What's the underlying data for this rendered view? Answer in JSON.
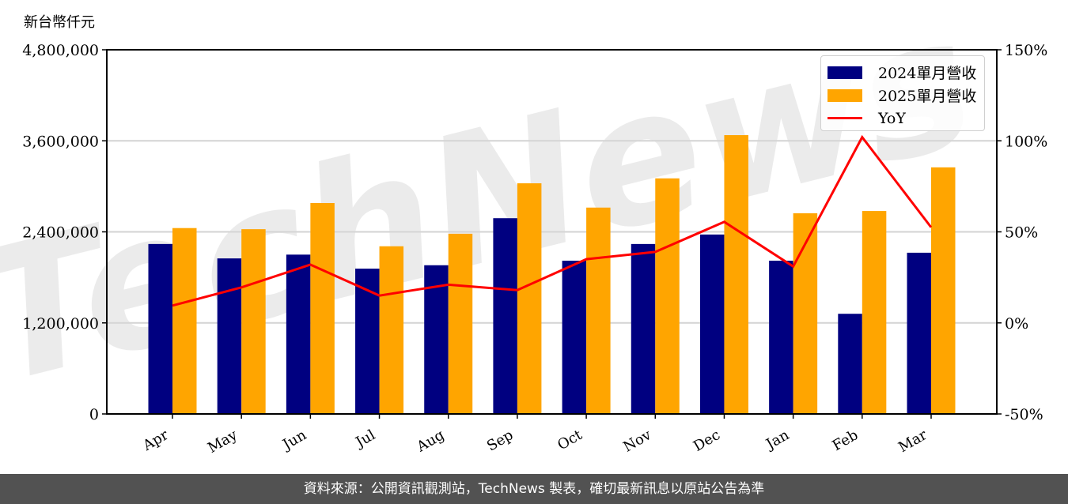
{
  "unit_label": "新台幣仟元",
  "footer": "資料來源：公開資訊觀測站，TechNews 製表，確切最新訊息以原站公告為準",
  "watermark": "TechNews",
  "colors": {
    "bar_2024": "#000080",
    "bar_2025": "#FFA500",
    "yoy_line": "#FF0000",
    "grid": "#d3d3d3",
    "footer_bg": "#525252"
  },
  "legend": {
    "items": [
      {
        "label": "2024單月營收",
        "type": "bar",
        "color": "#000080"
      },
      {
        "label": "2025單月營收",
        "type": "bar",
        "color": "#FFA500"
      },
      {
        "label": "YoY",
        "type": "line",
        "color": "#FF0000"
      }
    ]
  },
  "chart_data": {
    "type": "bar",
    "title": "",
    "xlabel": "",
    "ylabel": "新台幣仟元",
    "y2label": "",
    "categories": [
      "Apr",
      "May",
      "Jun",
      "Jul",
      "Aug",
      "Sep",
      "Oct",
      "Nov",
      "Dec",
      "Jan",
      "Feb",
      "Mar"
    ],
    "series": [
      {
        "name": "2024單月營收",
        "type": "bar",
        "axis": "left",
        "values": [
          2240000,
          2050000,
          2100000,
          1915000,
          1960000,
          2580000,
          2020000,
          2240000,
          2365000,
          2020000,
          1320000,
          2125000
        ]
      },
      {
        "name": "2025單月營收",
        "type": "bar",
        "axis": "left",
        "values": [
          2450000,
          2435000,
          2780000,
          2210000,
          2375000,
          3040000,
          2720000,
          3105000,
          3675000,
          2645000,
          2675000,
          3250000
        ]
      },
      {
        "name": "YoY",
        "type": "line",
        "axis": "right",
        "unit": "%",
        "values": [
          9.5,
          19.5,
          32,
          15,
          21,
          18,
          35,
          39,
          55.5,
          31,
          102,
          52.5
        ]
      }
    ],
    "ylim": [
      0,
      4800000
    ],
    "yticks": [
      0,
      1200000,
      2400000,
      3600000,
      4800000
    ],
    "ytick_labels": [
      "0",
      "1,200,000",
      "2,400,000",
      "3,600,000",
      "4,800,000"
    ],
    "y2lim": [
      -50,
      150
    ],
    "y2ticks": [
      -50,
      0,
      50,
      100,
      150
    ],
    "y2tick_labels": [
      "-50%",
      "0%",
      "50%",
      "100%",
      "150%"
    ],
    "grid": true,
    "legend_position": "upper right"
  }
}
